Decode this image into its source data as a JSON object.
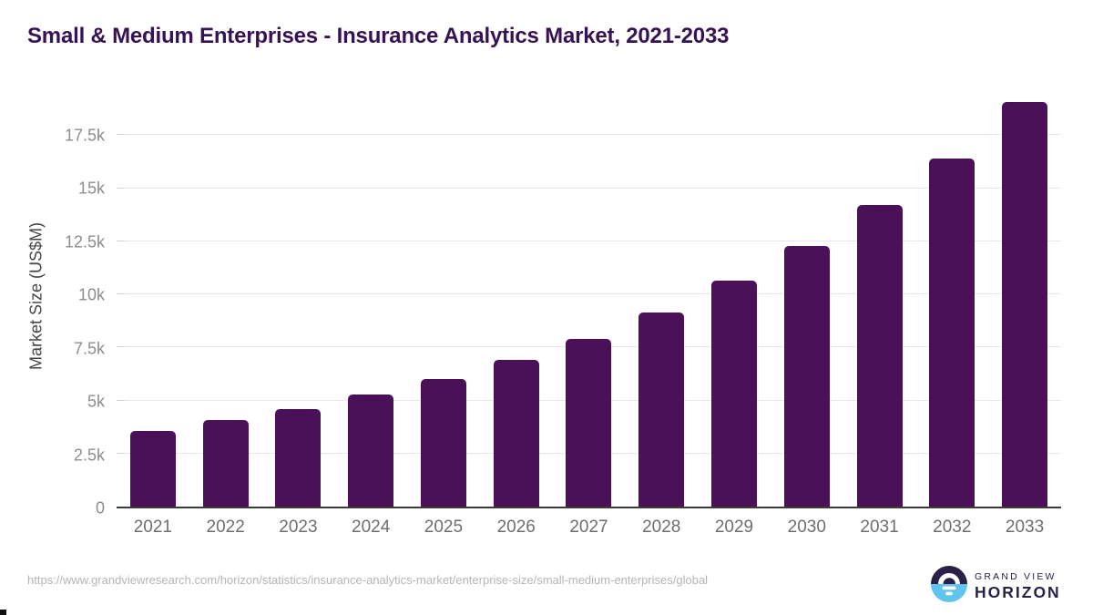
{
  "chart_data": {
    "type": "bar",
    "title": "Small & Medium Enterprises - Insurance Analytics Market, 2021-2033",
    "categories": [
      "2021",
      "2022",
      "2023",
      "2024",
      "2025",
      "2026",
      "2027",
      "2028",
      "2029",
      "2030",
      "2031",
      "2032",
      "2033"
    ],
    "values": [
      3570,
      4070,
      4600,
      5260,
      6030,
      6920,
      7920,
      9160,
      10630,
      12290,
      14190,
      16420,
      19060
    ],
    "xlabel": "",
    "ylabel": "Market Size (US$M)",
    "ylim": [
      0,
      19360
    ],
    "yticks": [
      {
        "value": 0,
        "label": "0"
      },
      {
        "value": 2500,
        "label": "2.5k"
      },
      {
        "value": 5000,
        "label": "5k"
      },
      {
        "value": 7500,
        "label": "7.5k"
      },
      {
        "value": 10000,
        "label": "10k"
      },
      {
        "value": 12500,
        "label": "12.5k"
      },
      {
        "value": 15000,
        "label": "15k"
      },
      {
        "value": 17500,
        "label": "17.5k"
      }
    ],
    "grid": true,
    "legend": false,
    "bar_color": "#4a1158"
  },
  "footer": {
    "source_url": "https://www.grandviewresearch.com/horizon/statistics/insurance-analytics-market/enterprise-size/small-medium-enterprises/global",
    "logo": {
      "brand_top": "GRAND VIEW",
      "brand_bottom": "HORIZON"
    }
  },
  "colors": {
    "title": "#371254",
    "bar": "#4a1158",
    "axis_line": "#3b3b3b",
    "gridline": "#e8e8e8",
    "y_tick_label": "#8d8d8d",
    "x_tick_label": "#6e6e6e",
    "axis_title": "#454545",
    "url_text": "#b5b5b5",
    "logo_dark": "#2b2148",
    "logo_blue": "#5fc5ec"
  }
}
